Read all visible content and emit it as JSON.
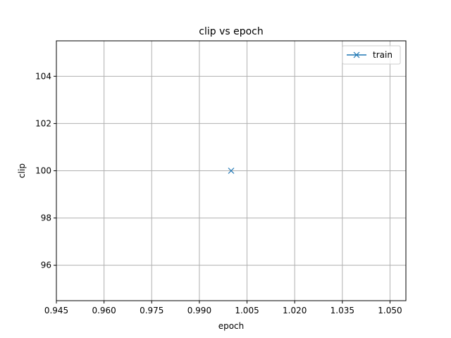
{
  "chart_data": {
    "type": "line",
    "title": "clip vs epoch",
    "xlabel": "epoch",
    "ylabel": "clip",
    "xlim": [
      0.945,
      1.055
    ],
    "ylim": [
      94.5,
      105.5
    ],
    "xticks": [
      0.945,
      0.96,
      0.975,
      0.99,
      1.005,
      1.02,
      1.035,
      1.05
    ],
    "xtick_labels": [
      "0.945",
      "0.960",
      "0.975",
      "0.990",
      "1.005",
      "1.020",
      "1.035",
      "1.050"
    ],
    "yticks": [
      96,
      98,
      100,
      102,
      104
    ],
    "ytick_labels": [
      "96",
      "98",
      "100",
      "102",
      "104"
    ],
    "grid": true,
    "legend_position": "top-right",
    "series": [
      {
        "name": "train",
        "x": [
          1.0
        ],
        "y": [
          100
        ],
        "marker": "x",
        "color": "#1f77b4"
      }
    ]
  }
}
